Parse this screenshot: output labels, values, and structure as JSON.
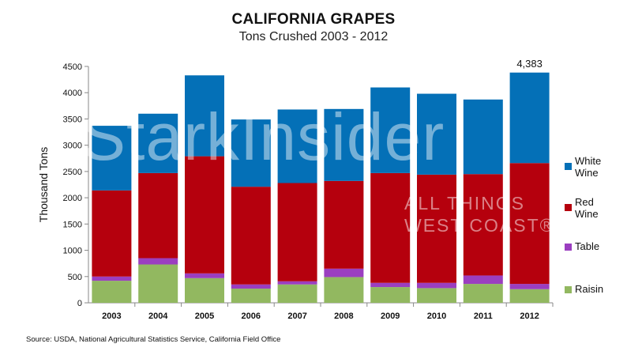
{
  "chart_data": {
    "type": "bar",
    "stacked": true,
    "title": "CALIFORNIA GRAPES",
    "subtitle": "Tons Crushed  2003 - 2012",
    "ylabel": "Thousand Tons",
    "xlabel": "",
    "ylim": [
      0,
      4500
    ],
    "yticks": [
      0,
      500,
      1000,
      1500,
      2000,
      2500,
      3000,
      3500,
      4000,
      4500
    ],
    "categories": [
      "2003",
      "2004",
      "2005",
      "2006",
      "2007",
      "2008",
      "2009",
      "2010",
      "2011",
      "2012"
    ],
    "series": [
      {
        "name": "Raisin",
        "color": "#92b860",
        "values": [
          420,
          730,
          470,
          270,
          350,
          490,
          300,
          280,
          360,
          260
        ]
      },
      {
        "name": "Table",
        "color": "#9b3ec0",
        "values": [
          80,
          120,
          90,
          80,
          60,
          160,
          80,
          100,
          160,
          100
        ]
      },
      {
        "name": "Red Wine",
        "color": "#b5000d",
        "values": [
          1640,
          1620,
          2230,
          1860,
          1870,
          1670,
          2090,
          2060,
          1930,
          2300
        ]
      },
      {
        "name": "White Wine",
        "color": "#0470b7",
        "values": [
          1230,
          1130,
          1540,
          1280,
          1400,
          1370,
          1630,
          1540,
          1420,
          1723
        ]
      }
    ],
    "legend_position": "right",
    "legend_labels": [
      [
        "White",
        "Wine"
      ],
      [
        "Red",
        "Wine"
      ],
      [
        "Table"
      ],
      [
        "Raisin"
      ]
    ],
    "annotations": [
      {
        "category": "2012",
        "text": "4,383"
      }
    ],
    "grid": false
  },
  "source": "Source: USDA, National Agricultural Statistics Service, California Field Office",
  "watermark": {
    "main": "StarkInsider",
    "line1": "ALL THINGS",
    "line2": "WEST COAST®"
  }
}
